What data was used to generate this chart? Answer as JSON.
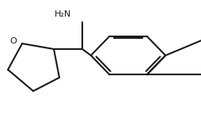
{
  "bg_color": "#ffffff",
  "line_color": "#1a1a1a",
  "line_width": 1.5,
  "nh2_label": "H₂N",
  "o_label": "O"
}
